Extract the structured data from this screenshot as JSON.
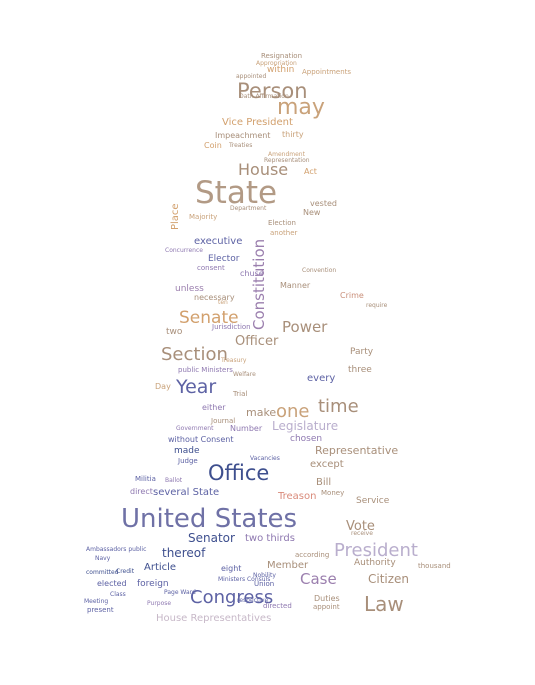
{
  "colors": {
    "background": "#ffffff",
    "palette": [
      "#a88f7a",
      "#d2a06d",
      "#c9a27a",
      "#8e78b0",
      "#5d62a4",
      "#b9aecd",
      "#9b7fae",
      "#3e4f8e",
      "#c7b8c8",
      "#d9b38b"
    ]
  },
  "words": [
    {
      "text": "Resignation"
    },
    {
      "text": "Appropriation"
    },
    {
      "text": "within"
    },
    {
      "text": "Appointments"
    },
    {
      "text": "appointed"
    },
    {
      "text": "Person"
    },
    {
      "text": "may"
    },
    {
      "text": "Vice President"
    },
    {
      "text": "Impeachment"
    },
    {
      "text": "thirty"
    },
    {
      "text": "Coin"
    },
    {
      "text": "Treaties"
    },
    {
      "text": "Amendment"
    },
    {
      "text": "House"
    },
    {
      "text": "Act"
    },
    {
      "text": "State"
    },
    {
      "text": "Place"
    },
    {
      "text": "Department"
    },
    {
      "text": "Majority"
    },
    {
      "text": "Election"
    },
    {
      "text": "another"
    },
    {
      "text": "executive"
    },
    {
      "text": "Concurrence"
    },
    {
      "text": "Elector"
    },
    {
      "text": "chuse"
    },
    {
      "text": "Constitution"
    },
    {
      "text": "consent"
    },
    {
      "text": "Manner"
    },
    {
      "text": "unless"
    },
    {
      "text": "necessary"
    },
    {
      "text": "ten"
    },
    {
      "text": "Convention"
    },
    {
      "text": "Crime"
    },
    {
      "text": "Senate"
    },
    {
      "text": "Power"
    },
    {
      "text": "two"
    },
    {
      "text": "Jurisdiction"
    },
    {
      "text": "Officer"
    },
    {
      "text": "Section"
    },
    {
      "text": "public Ministers"
    },
    {
      "text": "Year"
    },
    {
      "text": "every"
    },
    {
      "text": "three"
    },
    {
      "text": "Day"
    },
    {
      "text": "time"
    },
    {
      "text": "one"
    },
    {
      "text": "make"
    },
    {
      "text": "Trial"
    },
    {
      "text": "either"
    },
    {
      "text": "Journal"
    },
    {
      "text": "Legislature"
    },
    {
      "text": "chosen"
    },
    {
      "text": "Number"
    },
    {
      "text": "Representative"
    },
    {
      "text": "made"
    },
    {
      "text": "without Consent"
    },
    {
      "text": "except"
    },
    {
      "text": "Office"
    },
    {
      "text": "Bill"
    },
    {
      "text": "Money"
    },
    {
      "text": "Treason"
    },
    {
      "text": "Ballot"
    },
    {
      "text": "Militia"
    },
    {
      "text": "several State"
    },
    {
      "text": "direct"
    },
    {
      "text": "United States"
    },
    {
      "text": "Vote"
    },
    {
      "text": "Senator"
    },
    {
      "text": "two thirds"
    },
    {
      "text": "thereof"
    },
    {
      "text": "President"
    },
    {
      "text": "Ambassadors public"
    },
    {
      "text": "Article"
    },
    {
      "text": "eight"
    },
    {
      "text": "Member"
    },
    {
      "text": "Case"
    },
    {
      "text": "Authority"
    },
    {
      "text": "Citizen"
    },
    {
      "text": "thousand"
    },
    {
      "text": "elected"
    },
    {
      "text": "foreign"
    },
    {
      "text": "Congress"
    },
    {
      "text": "Law"
    },
    {
      "text": "Duties"
    },
    {
      "text": "appoint"
    },
    {
      "text": "House Representatives"
    },
    {
      "text": "Ministers Consuls"
    },
    {
      "text": "Union"
    },
    {
      "text": "according"
    },
    {
      "text": "Service"
    },
    {
      "text": "Party"
    },
    {
      "text": "require"
    },
    {
      "text": "Judge"
    },
    {
      "text": "Government"
    },
    {
      "text": "Purpose"
    },
    {
      "text": "directed"
    },
    {
      "text": "Page Ward"
    },
    {
      "text": "Class"
    },
    {
      "text": "Meeting"
    },
    {
      "text": "present"
    },
    {
      "text": "respective"
    },
    {
      "text": "Nobility"
    },
    {
      "text": "committed"
    },
    {
      "text": "Credit"
    },
    {
      "text": "Navy"
    },
    {
      "text": "vested"
    },
    {
      "text": "New"
    },
    {
      "text": "Oath Affirmation"
    },
    {
      "text": "Treasury"
    },
    {
      "text": "Vacancies"
    },
    {
      "text": "receive"
    },
    {
      "text": "Representation"
    },
    {
      "text": "Welfare"
    }
  ]
}
